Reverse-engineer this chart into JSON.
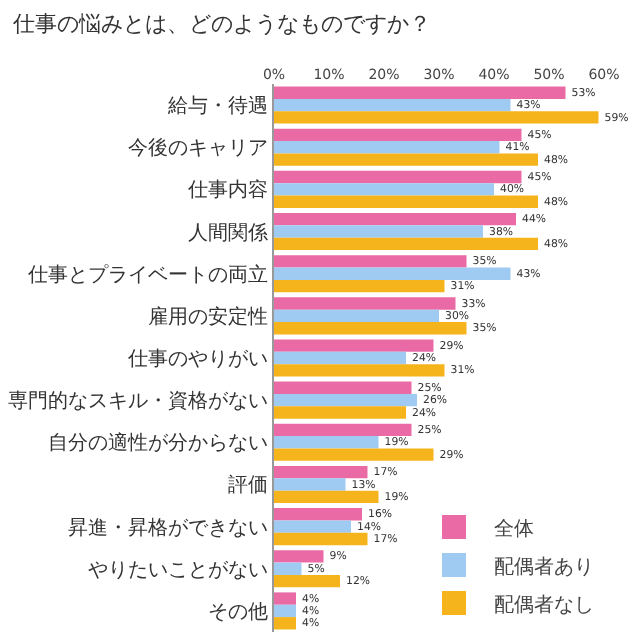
{
  "chart_data": {
    "type": "bar",
    "orientation": "horizontal",
    "title": "仕事の悩みとは、どのようなものですか？",
    "categories": [
      "給与・待遇",
      "今後のキャリア",
      "仕事内容",
      "人間関係",
      "仕事とプライベートの両立",
      "雇用の安定性",
      "仕事のやりがい",
      "専門的なスキル・資格がない",
      "自分の適性が分からない",
      "評価",
      "昇進・昇格ができない",
      "やりたいことがない",
      "その他"
    ],
    "series": [
      {
        "name": "全体",
        "color": "#ea6aa6",
        "values": [
          53,
          45,
          45,
          44,
          35,
          33,
          29,
          25,
          25,
          17,
          16,
          9,
          4
        ],
        "value_labels": [
          "53%",
          "45%",
          "45%",
          "44%",
          "35%",
          "33%",
          "29%",
          "25%",
          "25%",
          "17%",
          "16%",
          "9%",
          "4%"
        ]
      },
      {
        "name": "配偶者あり",
        "color": "#9fcaf2",
        "values": [
          43,
          41,
          40,
          38,
          43,
          30,
          24,
          26,
          19,
          13,
          14,
          5,
          4
        ],
        "value_labels": [
          "43%",
          "41%",
          "40%",
          "38%",
          "43%",
          "30%",
          "24%",
          "26%",
          "19%",
          "13%",
          "14%",
          "5%",
          "4%"
        ]
      },
      {
        "name": "配偶者なし",
        "color": "#f5b31c",
        "values": [
          59,
          48,
          48,
          48,
          31,
          35,
          31,
          24,
          29,
          19,
          17,
          12,
          4
        ],
        "value_labels": [
          "59%",
          "48%",
          "48%",
          "48%",
          "31%",
          "35%",
          "31%",
          "24%",
          "29%",
          "19%",
          "17%",
          "12%",
          "4%"
        ]
      }
    ],
    "xlim": [
      0,
      60
    ],
    "xticks": [
      {
        "value": 0,
        "label": "0%"
      },
      {
        "value": 10,
        "label": "10%"
      },
      {
        "value": 20,
        "label": "20%"
      },
      {
        "value": 30,
        "label": "30%"
      },
      {
        "value": 40,
        "label": "40%"
      },
      {
        "value": 50,
        "label": "50%"
      },
      {
        "value": 60,
        "label": "60%"
      }
    ],
    "legend": "bottom right"
  }
}
